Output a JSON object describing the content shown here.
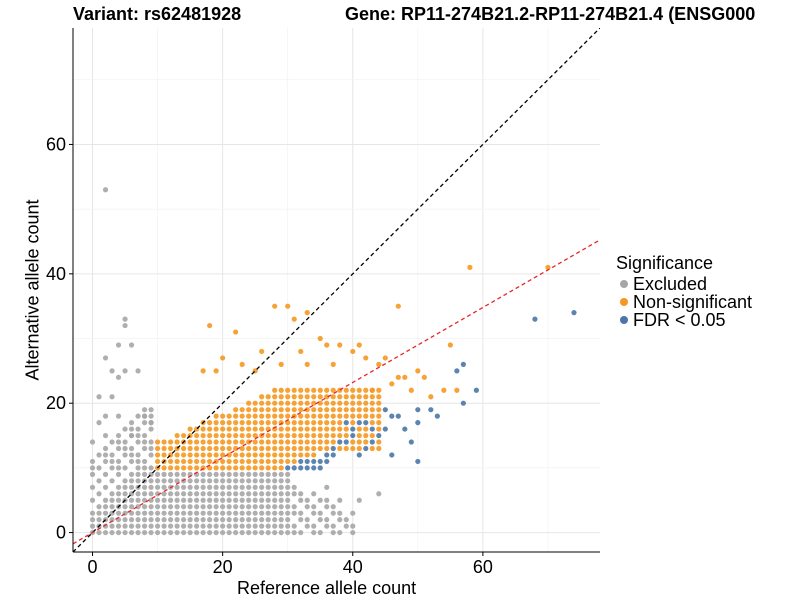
{
  "chart_data": {
    "type": "scatter",
    "title_left": "Variant: rs62481928",
    "title_right": "Gene: RP11-274B21.2-RP11-274B21.4 (ENSG000",
    "xlabel": "Reference allele count",
    "ylabel": "Alternative allele count",
    "xlim": [
      -3,
      78
    ],
    "ylim": [
      -3,
      78
    ],
    "xticks": [
      0,
      20,
      40,
      60
    ],
    "yticks": [
      0,
      20,
      40,
      60
    ],
    "grid": true,
    "legend": {
      "title": "Significance",
      "position": "right",
      "items": [
        {
          "label": "Excluded",
          "color": "#a6a6a6"
        },
        {
          "label": "Non-significant",
          "color": "#f5981f"
        },
        {
          "label": "FDR < 0.05",
          "color": "#4a77a8"
        }
      ]
    },
    "reference_lines": [
      {
        "name": "identity",
        "slope": 1,
        "intercept": 0,
        "color": "#000000",
        "style": "dashed"
      },
      {
        "name": "fit",
        "slope": 0.58,
        "intercept": 0,
        "color": "#e8262a",
        "style": "dashed"
      }
    ],
    "series": [
      {
        "name": "Excluded",
        "color": "#a6a6a6",
        "bulk_region": {
          "x_range": [
            0,
            40
          ],
          "y_range": [
            0,
            10
          ],
          "rule": "x < 10 or y < 10"
        },
        "points": [
          [
            2,
            53
          ],
          [
            5,
            33
          ],
          [
            5,
            32
          ],
          [
            4,
            29
          ],
          [
            6,
            29
          ],
          [
            2,
            27
          ],
          [
            3,
            25
          ],
          [
            5,
            25
          ],
          [
            7,
            25
          ],
          [
            4,
            24
          ],
          [
            1,
            21
          ],
          [
            3,
            21
          ],
          [
            1,
            17
          ],
          [
            2,
            18
          ],
          [
            4,
            18
          ],
          [
            0,
            14
          ],
          [
            2,
            15
          ],
          [
            6,
            15
          ],
          [
            8,
            18
          ],
          [
            9,
            19
          ],
          [
            9,
            17
          ],
          [
            36,
            7
          ],
          [
            38,
            5
          ],
          [
            41,
            5
          ],
          [
            44,
            6
          ]
        ]
      },
      {
        "name": "Non-significant",
        "color": "#f5981f",
        "bulk_region": {
          "x_range": [
            10,
            44
          ],
          "y_range": [
            10,
            22
          ],
          "rule": "y >= 10 and x >= 10 and not significant"
        },
        "points": [
          [
            18,
            32
          ],
          [
            22,
            31
          ],
          [
            28,
            35
          ],
          [
            30,
            35
          ],
          [
            31,
            33
          ],
          [
            33,
            34
          ],
          [
            35,
            30
          ],
          [
            36,
            29
          ],
          [
            38,
            29
          ],
          [
            41,
            29
          ],
          [
            47,
            35
          ],
          [
            55,
            29
          ],
          [
            58,
            41
          ],
          [
            70,
            41
          ],
          [
            45,
            27
          ],
          [
            48,
            24
          ],
          [
            50,
            25
          ],
          [
            44,
            26
          ],
          [
            42,
            27
          ],
          [
            40,
            28
          ],
          [
            32,
            28
          ],
          [
            26,
            28
          ],
          [
            23,
            26
          ],
          [
            20,
            27
          ],
          [
            19,
            25
          ],
          [
            17,
            25
          ],
          [
            25,
            25
          ],
          [
            29,
            26
          ],
          [
            33,
            26
          ],
          [
            37,
            26
          ],
          [
            43,
            22
          ],
          [
            46,
            23
          ],
          [
            49,
            22
          ],
          [
            52,
            21
          ],
          [
            54,
            22
          ],
          [
            56,
            22
          ],
          [
            51,
            24
          ],
          [
            47,
            24
          ]
        ]
      },
      {
        "name": "FDR < 0.05",
        "color": "#4a77a8",
        "points": [
          [
            68,
            33
          ],
          [
            74,
            34
          ],
          [
            59,
            22
          ],
          [
            57,
            26
          ],
          [
            56,
            25
          ],
          [
            57,
            20
          ],
          [
            53,
            18
          ],
          [
            50,
            19
          ],
          [
            52,
            19
          ],
          [
            50,
            17
          ],
          [
            47,
            18
          ],
          [
            46,
            18
          ],
          [
            45,
            19
          ],
          [
            48,
            16
          ],
          [
            44,
            15
          ],
          [
            45,
            16
          ],
          [
            43,
            16
          ],
          [
            42,
            17
          ],
          [
            41,
            17
          ],
          [
            39,
            17
          ],
          [
            40,
            16
          ],
          [
            40,
            15
          ],
          [
            39,
            14
          ],
          [
            38,
            14
          ],
          [
            37,
            13
          ],
          [
            37,
            12
          ],
          [
            36,
            12
          ],
          [
            36,
            11
          ],
          [
            35,
            11
          ],
          [
            35,
            10
          ],
          [
            34,
            10
          ],
          [
            34,
            11
          ],
          [
            33,
            10
          ],
          [
            33,
            11
          ],
          [
            32,
            10
          ],
          [
            32,
            11
          ],
          [
            31,
            10
          ],
          [
            30,
            10
          ],
          [
            41,
            12
          ],
          [
            42,
            13
          ],
          [
            43,
            14
          ],
          [
            46,
            12
          ],
          [
            49,
            14
          ],
          [
            50,
            11
          ]
        ]
      }
    ]
  }
}
